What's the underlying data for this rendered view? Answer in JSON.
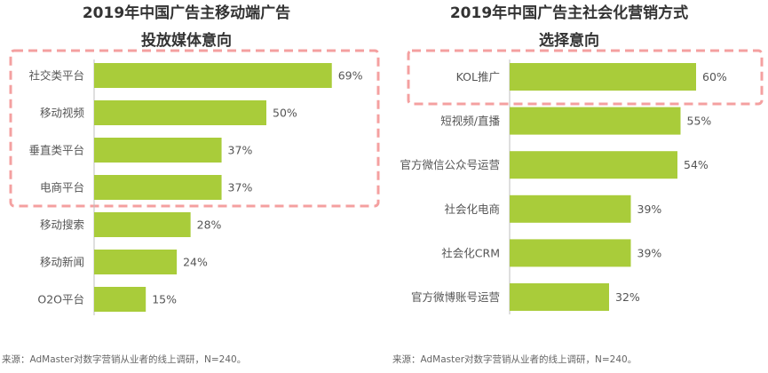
{
  "chart_data": [
    {
      "type": "bar",
      "orientation": "horizontal",
      "title": "2019年中国广告主移动端广告",
      "subtitle": "投放媒体意向",
      "categories": [
        "社交类平台",
        "移动视频",
        "垂直类平台",
        "电商平台",
        "移动搜索",
        "移动新闻",
        "O2O平台"
      ],
      "values": [
        69,
        50,
        37,
        37,
        28,
        24,
        15
      ],
      "value_labels": [
        "69%",
        "50%",
        "37%",
        "37%",
        "28%",
        "24%",
        "15%"
      ],
      "highlighted_count": 4,
      "bar_color": "#a9cc3a",
      "highlight_color": "#f4a0a0",
      "source": "来源：AdMaster对数字营销从业者的线上调研，N=240。"
    },
    {
      "type": "bar",
      "orientation": "horizontal",
      "title": "2019年中国广告主社会化营销方式",
      "subtitle": "选择意向",
      "categories": [
        "KOL推广",
        "短视频/直播",
        "官方微信公众号运营",
        "社会化电商",
        "社会化CRM",
        "官方微博账号运营"
      ],
      "values": [
        60,
        55,
        54,
        39,
        39,
        32
      ],
      "value_labels": [
        "60%",
        "55%",
        "54%",
        "39%",
        "39%",
        "32%"
      ],
      "highlighted_count": 1,
      "bar_color": "#a9cc3a",
      "highlight_color": "#f4a0a0",
      "source": "来源：AdMaster对数字营销从业者的线上调研，N=240。"
    }
  ]
}
